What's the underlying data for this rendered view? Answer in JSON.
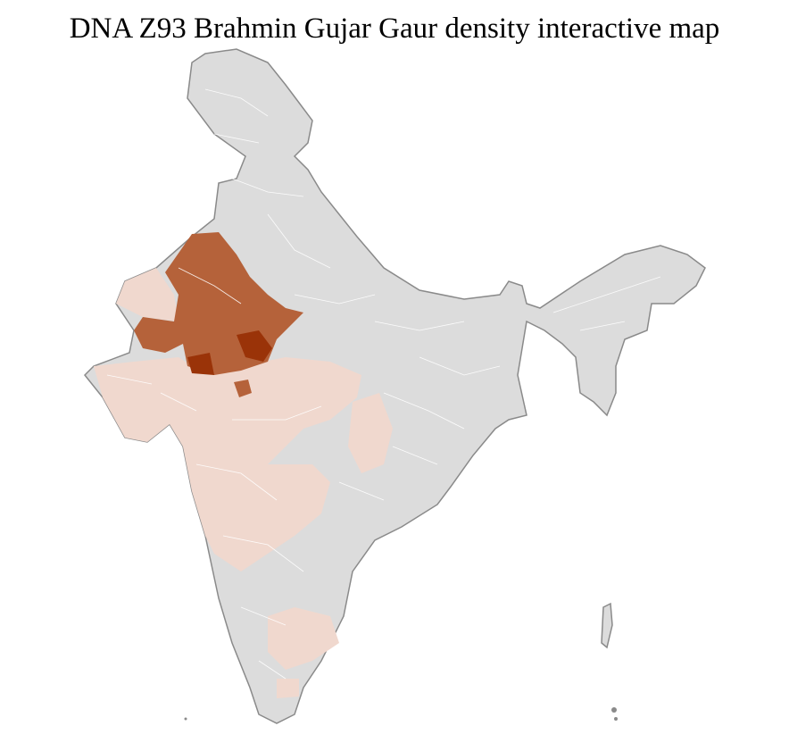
{
  "title": "DNA Z93 Brahmin Gujar Gaur density interactive map"
}
